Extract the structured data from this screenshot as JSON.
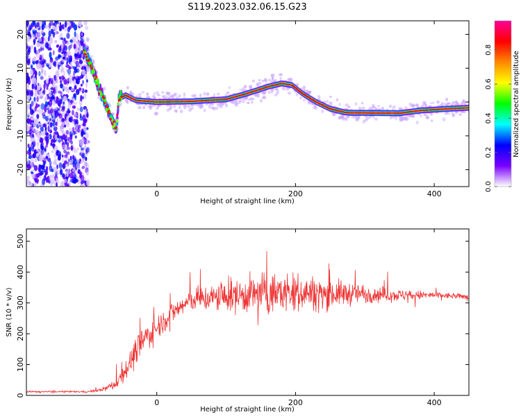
{
  "chart_data": [
    {
      "type": "heatmap",
      "title": "S119.2023.032.06.15.G23",
      "xlabel": "Height of straight line (km)",
      "ylabel": "Frequency (Hz)",
      "xlim": [
        -188,
        450
      ],
      "ylim": [
        -25,
        24
      ],
      "x_ticks": [
        0,
        200,
        400
      ],
      "y_ticks": [
        -20,
        -10,
        0,
        10,
        20
      ],
      "colorbar": {
        "label": "Normalized spectral amplitude",
        "range": [
          0,
          0.97
        ],
        "ticks": [
          0.0,
          0.2,
          0.4,
          0.6,
          0.8
        ],
        "placement": "right",
        "colors": [
          "#ffffff",
          "#7a00ff",
          "#0000ff",
          "#00ffff",
          "#00ff00",
          "#ffff00",
          "#ff8800",
          "#ff0000",
          "#ff0099"
        ]
      },
      "ridge": {
        "name": "",
        "x": [
          -105,
          -95,
          -85,
          -75,
          -65,
          -58,
          -55,
          -45,
          -30,
          0,
          50,
          100,
          130,
          160,
          180,
          195,
          210,
          230,
          250,
          270,
          280,
          300,
          350,
          380,
          420,
          450
        ],
        "freq": [
          15.5,
          11,
          5,
          0,
          -5,
          -8,
          1,
          2,
          0.5,
          0,
          0.2,
          0.8,
          2.5,
          4.5,
          5.5,
          5,
          2.5,
          0,
          -2,
          -3,
          -3.2,
          -3.2,
          -3.3,
          -2.5,
          -2,
          -1.7
        ]
      },
      "noise_region": {
        "x_range": [
          -188,
          -105
        ],
        "freq_range": [
          -25,
          24
        ]
      }
    },
    {
      "type": "line",
      "title": "",
      "xlabel": "Height of straight line (km)",
      "ylabel": "SNR (10 * v/v)",
      "xlim": [
        -188,
        450
      ],
      "ylim": [
        0,
        540
      ],
      "x_ticks": [
        0,
        200,
        400
      ],
      "y_ticks": [
        0,
        100,
        200,
        300,
        400,
        500
      ],
      "series": [
        {
          "name": "",
          "color": "#ee3333",
          "x": [
            -188,
            -150,
            -100,
            -80,
            -60,
            -40,
            -20,
            0,
            20,
            50,
            100,
            150,
            200,
            250,
            300,
            350,
            400,
            450
          ],
          "mean": [
            12,
            12,
            12,
            18,
            35,
            100,
            180,
            220,
            265,
            310,
            320,
            330,
            335,
            330,
            330,
            325,
            325,
            320
          ],
          "spread": [
            5,
            5,
            5,
            10,
            30,
            70,
            90,
            70,
            65,
            65,
            90,
            120,
            110,
            85,
            55,
            35,
            20,
            15
          ]
        }
      ]
    }
  ]
}
